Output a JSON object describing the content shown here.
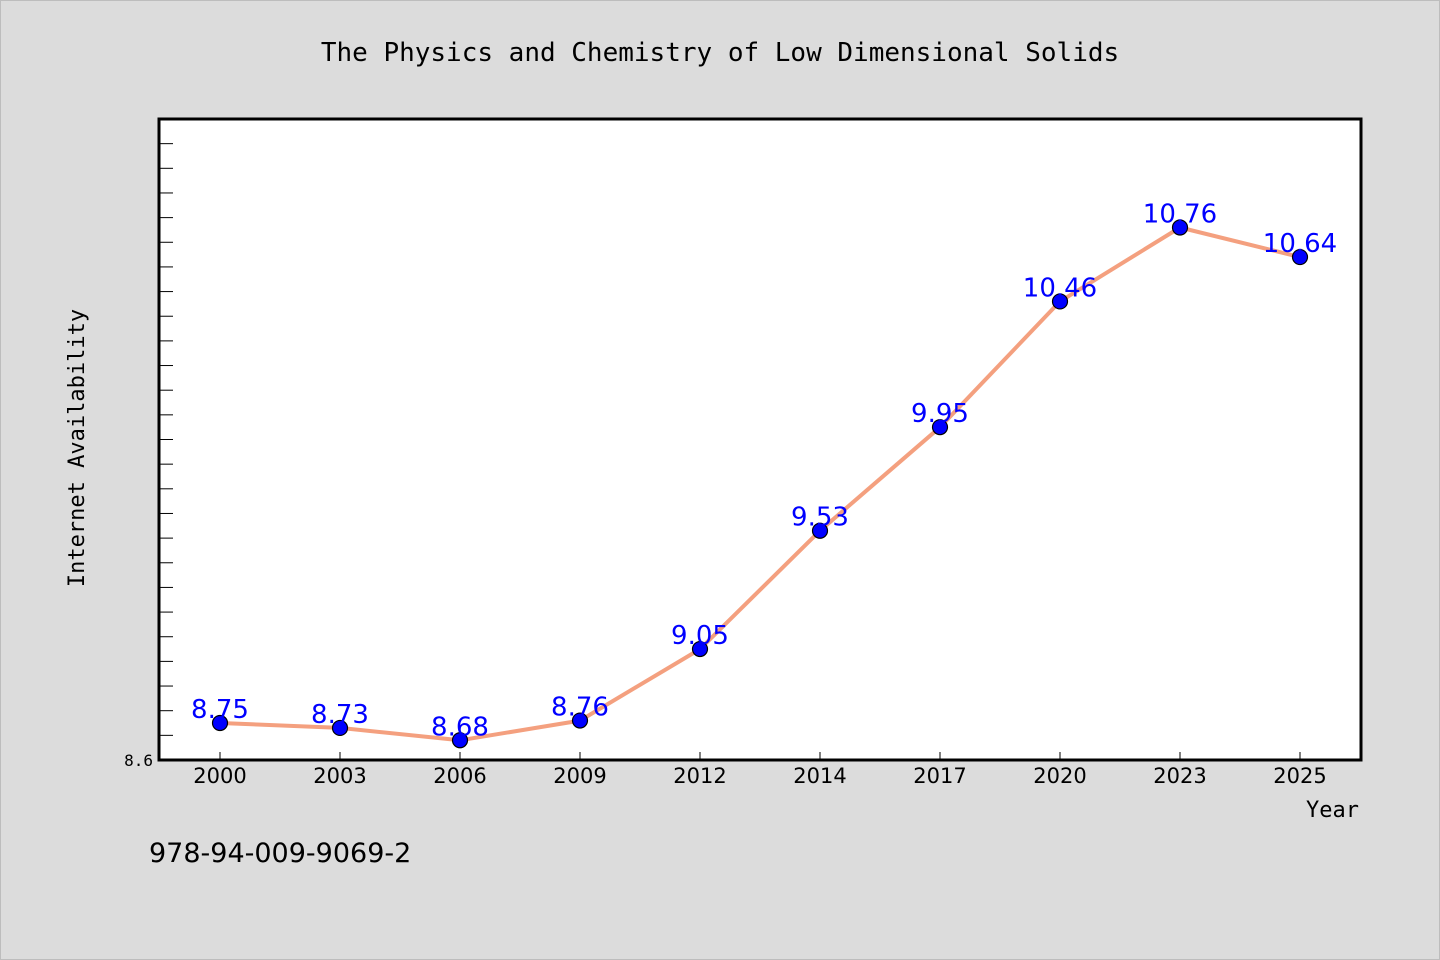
{
  "chart_data": {
    "type": "line",
    "title": "The Physics and Chemistry of Low Dimensional Solids",
    "xlabel": "Year",
    "ylabel": "Internet Availability",
    "categories": [
      "2000",
      "2003",
      "2006",
      "2009",
      "2012",
      "2014",
      "2017",
      "2020",
      "2023",
      "2025"
    ],
    "series": [
      {
        "values": [
          8.75,
          8.73,
          8.68,
          8.76,
          9.05,
          9.53,
          9.95,
          10.46,
          10.76,
          10.64
        ],
        "labels": [
          "8.75",
          "8.73",
          "8.68",
          "8.76",
          "9.05",
          "9.53",
          "9.95",
          "10.46",
          "10.76",
          "10.64"
        ]
      }
    ],
    "ylim": [
      8.6,
      11.2
    ],
    "yticks_labeled": [
      "8.6"
    ],
    "yminor_step": 0.1,
    "line_color": "#f4a07f",
    "marker_color": "#0000ff",
    "label_color": "#0000ff",
    "grid": false,
    "legend": "none"
  },
  "annotation": "978-94-009-9069-2"
}
